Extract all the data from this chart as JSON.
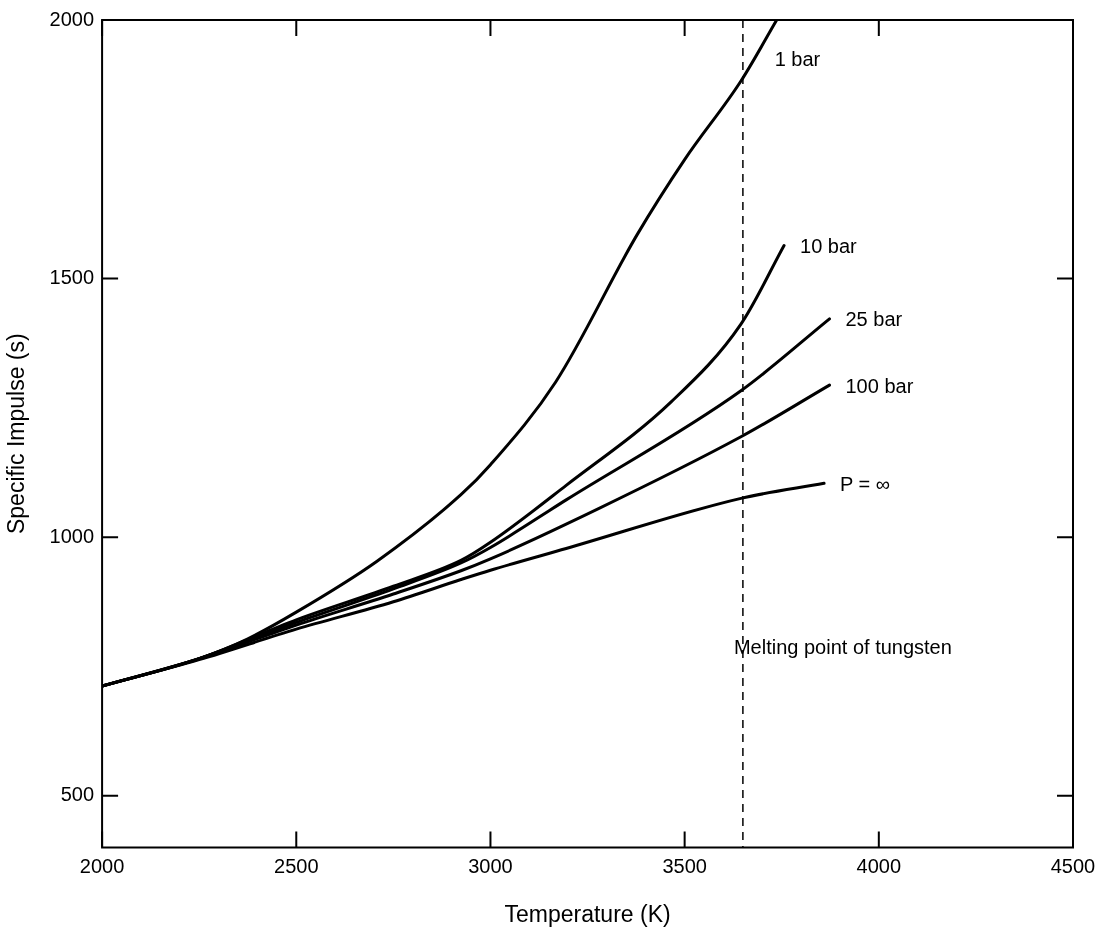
{
  "chart_data": {
    "type": "line",
    "xlabel": "Temperature (K)",
    "ylabel": "Specific Impulse (s)",
    "xlim": [
      2000,
      4500
    ],
    "xticks": [
      2000,
      2500,
      3000,
      3500,
      4000,
      4500
    ],
    "ylim": [
      400,
      2000
    ],
    "yticks": [
      500,
      1000,
      1500,
      2000
    ],
    "grid": false,
    "legend": false,
    "marker": "none",
    "line_style": "solid",
    "series": [
      {
        "name": "1 bar",
        "color": "#000000",
        "x": [
          2000,
          2250,
          2374,
          2500,
          2707,
          2924,
          3000,
          3168,
          3377,
          3500,
          3645,
          3737
        ],
        "values": [
          712,
          765,
          803,
          855,
          953,
          1082,
          1140,
          1300,
          1584,
          1730,
          1882,
          2000
        ]
      },
      {
        "name": "10 bar",
        "color": "#000000",
        "x": [
          2000,
          2250,
          2500,
          2750,
          2924,
          3000,
          3195,
          3466,
          3645,
          3756
        ],
        "values": [
          712,
          765,
          840,
          905,
          955,
          990,
          1100,
          1262,
          1412,
          1564
        ]
      },
      {
        "name": "25 bar",
        "color": "#000000",
        "x": [
          2000,
          2250,
          2500,
          2750,
          2924,
          3000,
          3195,
          3645,
          3873
        ],
        "values": [
          712,
          765,
          835,
          900,
          950,
          980,
          1072,
          1283,
          1422
        ]
      },
      {
        "name": "100 bar",
        "color": "#000000",
        "x": [
          2000,
          2250,
          2500,
          2750,
          2924,
          3000,
          3195,
          3645,
          3873
        ],
        "values": [
          712,
          765,
          830,
          890,
          935,
          958,
          1025,
          1194,
          1294
        ]
      },
      {
        "name": "P = ∞",
        "color": "#000000",
        "x": [
          2000,
          2250,
          2500,
          2750,
          2924,
          3000,
          3195,
          3645,
          3859
        ],
        "values": [
          712,
          763,
          822,
          875,
          918,
          936,
          978,
          1075,
          1104
        ]
      }
    ],
    "ref_lines": [
      {
        "axis": "x",
        "value": 3650,
        "label": "Melting point of tungsten",
        "color": "#000000",
        "line_style": "dashed"
      }
    ]
  }
}
